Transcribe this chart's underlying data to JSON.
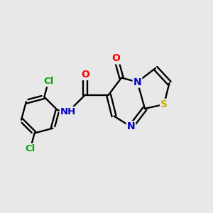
{
  "background_color": "#e8e8e8",
  "bond_color": "#000000",
  "atom_colors": {
    "O": "#ff0000",
    "N": "#0000cc",
    "S": "#ccaa00",
    "Cl": "#00aa00",
    "C": "#000000",
    "H": "#444444"
  },
  "figsize": [
    3.0,
    3.0
  ],
  "dpi": 100
}
